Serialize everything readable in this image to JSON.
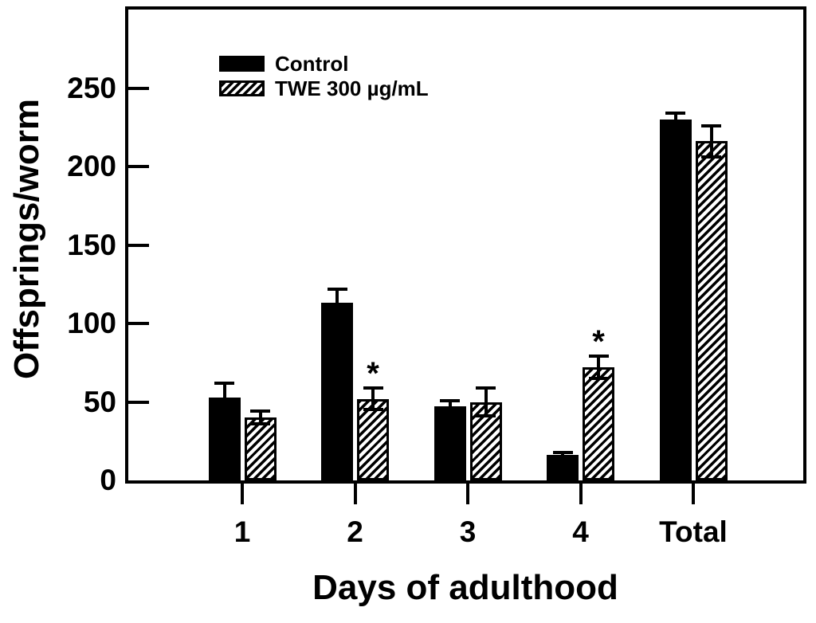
{
  "chart_data": {
    "type": "bar",
    "title": "",
    "xlabel": "Days of adulthood",
    "ylabel": "Offsprings/worm",
    "categories": [
      "1",
      "2",
      "3",
      "4",
      "Total"
    ],
    "series": [
      {
        "name": "Control",
        "style": "solid",
        "values": [
          53,
          113,
          47,
          16,
          230
        ],
        "errors": [
          9,
          9,
          4,
          2,
          4
        ],
        "significant": [
          false,
          false,
          false,
          false,
          false
        ]
      },
      {
        "name": "TWE 300 µg/mL",
        "style": "hatched",
        "values": [
          40,
          52,
          50,
          72,
          216
        ],
        "errors": [
          4,
          7,
          9,
          7,
          10
        ],
        "significant": [
          false,
          true,
          false,
          true,
          false
        ]
      }
    ],
    "ylim": [
      0,
      300
    ],
    "yticks": [
      0,
      50,
      100,
      150,
      200,
      250
    ],
    "grid": false,
    "legend_position": "top-left-inside",
    "significance_marker": "*",
    "error_bars": "symmetric, capped"
  },
  "colors": {
    "foreground": "#000000",
    "background": "#ffffff"
  }
}
